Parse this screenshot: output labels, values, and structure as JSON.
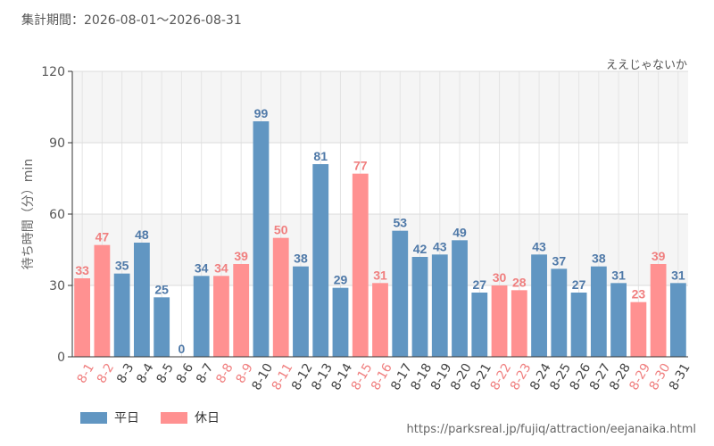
{
  "header": {
    "period": "集計期間：2026-08-01～2026-08-31",
    "attraction": "ええじゃないか"
  },
  "legend": {
    "weekday_label": "平日",
    "holiday_label": "休日"
  },
  "footer": {
    "url": "https://parksreal.jp/fujiq/attraction/eejanaika.html"
  },
  "colors": {
    "weekday": "#6196c2",
    "holiday": "#ff9191",
    "weekday_label": "#4f79a8",
    "holiday_label": "#f07f7f"
  },
  "chart_data": {
    "type": "bar",
    "xlabel": "",
    "ylabel": "待ち時間（分）min",
    "ylim": [
      0,
      120
    ],
    "yticks": [
      0,
      30,
      60,
      90,
      120
    ],
    "grid": true,
    "legend_position": "bottom-left",
    "categories": [
      "8-1",
      "8-2",
      "8-3",
      "8-4",
      "8-5",
      "8-6",
      "8-7",
      "8-8",
      "8-9",
      "8-10",
      "8-11",
      "8-12",
      "8-13",
      "8-14",
      "8-15",
      "8-16",
      "8-17",
      "8-18",
      "8-19",
      "8-20",
      "8-21",
      "8-22",
      "8-23",
      "8-24",
      "8-25",
      "8-26",
      "8-27",
      "8-28",
      "8-29",
      "8-30",
      "8-31"
    ],
    "values": [
      33,
      47,
      35,
      48,
      25,
      0,
      34,
      34,
      39,
      99,
      50,
      38,
      81,
      29,
      77,
      31,
      53,
      42,
      43,
      49,
      27,
      30,
      28,
      43,
      37,
      27,
      38,
      31,
      23,
      39,
      31
    ],
    "day_type": [
      "休日",
      "休日",
      "平日",
      "平日",
      "平日",
      "平日",
      "平日",
      "休日",
      "休日",
      "平日",
      "休日",
      "平日",
      "平日",
      "平日",
      "休日",
      "休日",
      "平日",
      "平日",
      "平日",
      "平日",
      "平日",
      "休日",
      "休日",
      "平日",
      "平日",
      "平日",
      "平日",
      "平日",
      "休日",
      "休日",
      "平日"
    ]
  }
}
